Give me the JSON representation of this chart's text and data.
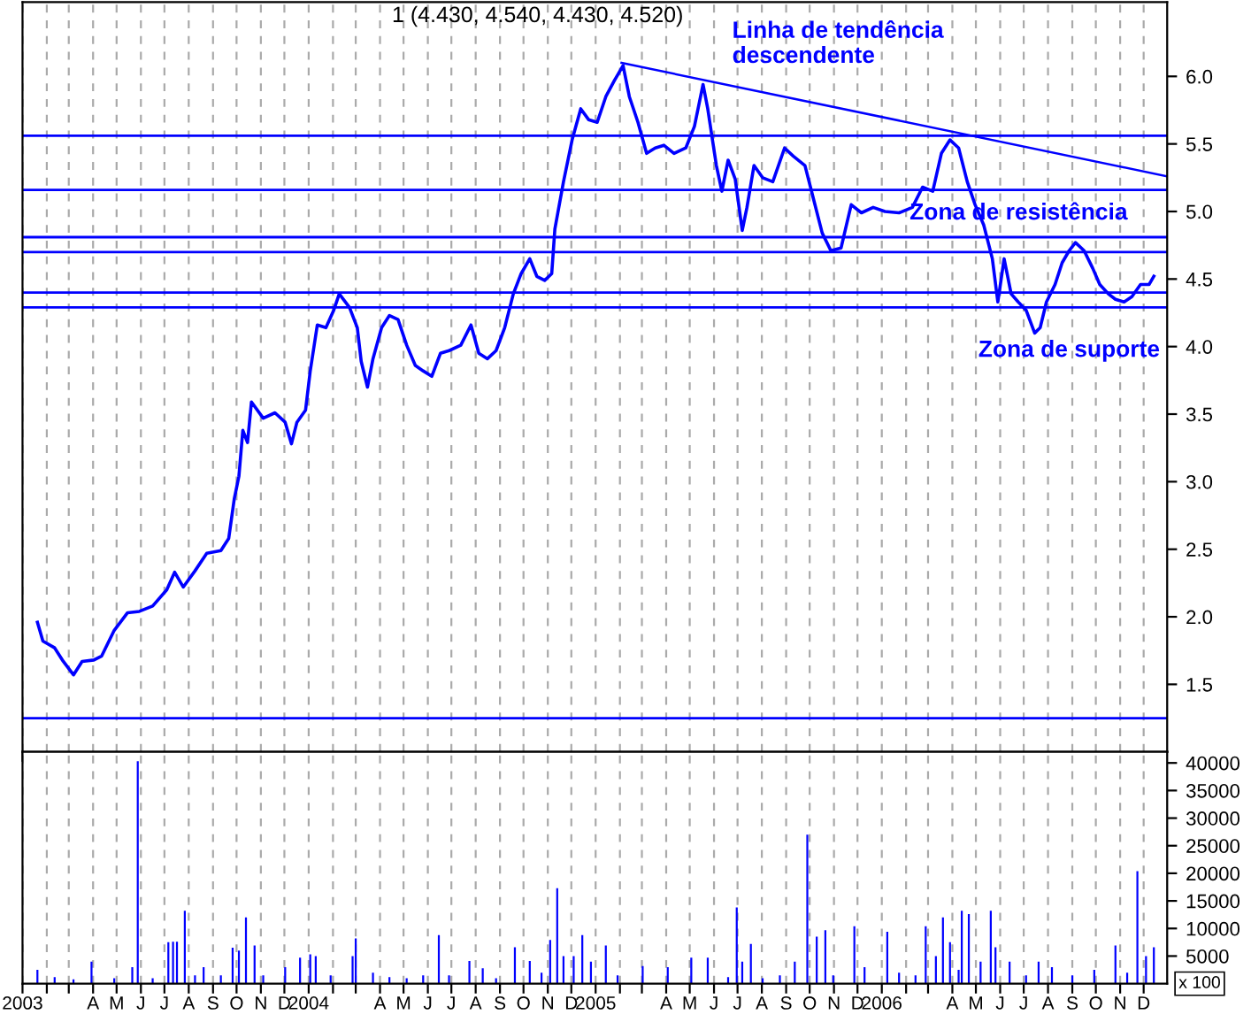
{
  "chart_data": [
    {
      "type": "line",
      "title": "1 (4.430, 4.540, 4.430, 4.520)",
      "series": [
        {
          "type": "line",
          "color": "#0000ff",
          "x": [
            "2003-01-20",
            "2003-01-27",
            "2003-02-11",
            "2003-02-22",
            "2003-03-07",
            "2003-03-18",
            "2003-04-02",
            "2003-04-12",
            "2003-04-28",
            "2003-05-15",
            "2003-05-30",
            "2003-06-16",
            "2003-07-04",
            "2003-07-14",
            "2003-07-25",
            "2003-08-09",
            "2003-08-24",
            "2003-09-11",
            "2003-09-21",
            "2003-09-28",
            "2003-10-04",
            "2003-10-09",
            "2003-10-15",
            "2003-10-20",
            "2003-11-04",
            "2003-11-19",
            "2003-12-02",
            "2003-12-10",
            "2003-12-17",
            "2003-12-28",
            "2004-01-03",
            "2004-01-12",
            "2004-01-23",
            "2004-02-02",
            "2004-02-09",
            "2004-02-22",
            "2004-03-03",
            "2004-03-08",
            "2004-03-16",
            "2004-03-23",
            "2004-04-03",
            "2004-04-13",
            "2004-04-24",
            "2004-05-05",
            "2004-05-16",
            "2004-05-26",
            "2004-06-06",
            "2004-06-17",
            "2004-06-28",
            "2004-07-13",
            "2004-07-26",
            "2004-08-05",
            "2004-08-16",
            "2004-08-27",
            "2004-09-07",
            "2004-09-18",
            "2004-09-28",
            "2004-10-09",
            "2004-10-18",
            "2004-10-28",
            "2004-11-06",
            "2004-11-10",
            "2004-11-21",
            "2004-12-02",
            "2004-12-13",
            "2004-12-23",
            "2005-01-03",
            "2005-01-14",
            "2005-01-25",
            "2005-02-05",
            "2005-02-13",
            "2005-02-24",
            "2005-03-07",
            "2005-03-18",
            "2005-03-29",
            "2005-04-11",
            "2005-04-26",
            "2005-05-07",
            "2005-05-18",
            "2005-05-24",
            "2005-06-04",
            "2005-06-11",
            "2005-06-19",
            "2005-06-28",
            "2005-07-07",
            "2005-07-13",
            "2005-07-22",
            "2005-08-02",
            "2005-08-15",
            "2005-08-30",
            "2005-09-10",
            "2005-09-25",
            "2005-10-06",
            "2005-10-17",
            "2005-10-28",
            "2005-11-10",
            "2005-11-23",
            "2005-12-06",
            "2005-12-21",
            "2006-01-05",
            "2006-01-23",
            "2006-02-09",
            "2006-02-22",
            "2006-03-07",
            "2006-03-18",
            "2006-03-29",
            "2006-04-09",
            "2006-04-20",
            "2006-04-30",
            "2006-05-11",
            "2006-05-22",
            "2006-05-29",
            "2006-06-06",
            "2006-06-15",
            "2006-06-24",
            "2006-07-04",
            "2006-07-15",
            "2006-07-22",
            "2006-07-30",
            "2006-08-10",
            "2006-08-19",
            "2006-08-28",
            "2006-09-05",
            "2006-09-16",
            "2006-09-27",
            "2006-10-06",
            "2006-10-17",
            "2006-10-26",
            "2006-11-06",
            "2006-11-16",
            "2006-11-27",
            "2006-12-08",
            "2006-12-14"
          ],
          "values": [
            1.96,
            1.82,
            1.77,
            1.67,
            1.57,
            1.67,
            1.68,
            1.71,
            1.9,
            2.03,
            2.04,
            2.08,
            2.2,
            2.33,
            2.22,
            2.34,
            2.47,
            2.49,
            2.58,
            2.87,
            3.04,
            3.38,
            3.29,
            3.59,
            3.47,
            3.51,
            3.44,
            3.28,
            3.44,
            3.53,
            3.82,
            4.16,
            4.14,
            4.27,
            4.39,
            4.29,
            4.14,
            3.89,
            3.7,
            3.91,
            4.14,
            4.23,
            4.2,
            4.01,
            3.86,
            3.82,
            3.78,
            3.95,
            3.97,
            4.01,
            4.16,
            3.95,
            3.91,
            3.97,
            4.14,
            4.39,
            4.54,
            4.65,
            4.52,
            4.49,
            4.54,
            4.87,
            5.22,
            5.53,
            5.76,
            5.68,
            5.66,
            5.85,
            5.97,
            6.08,
            5.85,
            5.66,
            5.43,
            5.47,
            5.49,
            5.43,
            5.47,
            5.63,
            5.94,
            5.76,
            5.34,
            5.15,
            5.38,
            5.24,
            4.86,
            5.03,
            5.34,
            5.25,
            5.22,
            5.47,
            5.41,
            5.34,
            5.09,
            4.84,
            4.71,
            4.73,
            5.05,
            4.99,
            5.03,
            5.0,
            4.99,
            5.03,
            5.18,
            5.15,
            5.43,
            5.53,
            5.47,
            5.22,
            5.05,
            4.9,
            4.65,
            4.33,
            4.65,
            4.39,
            4.33,
            4.27,
            4.1,
            4.14,
            4.33,
            4.46,
            4.62,
            4.71,
            4.77,
            4.71,
            4.58,
            4.46,
            4.39,
            4.35,
            4.33,
            4.37,
            4.46,
            4.46,
            4.52
          ]
        },
        {
          "type": "line",
          "color": "#0000ff",
          "x": [
            "2005-02-03",
            "2006-12-31"
          ],
          "values": [
            6.1,
            5.26
          ]
        }
      ],
      "ref_lines": [
        {
          "axis": "y",
          "value": 5.56,
          "color": "#0000ff"
        },
        {
          "axis": "y",
          "value": 5.16,
          "color": "#0000ff"
        },
        {
          "axis": "y",
          "value": 4.81,
          "color": "#0000ff"
        },
        {
          "axis": "y",
          "value": 4.7,
          "color": "#0000ff"
        },
        {
          "axis": "y",
          "value": 4.4,
          "color": "#0000ff"
        },
        {
          "axis": "y",
          "value": 4.29,
          "color": "#0000ff"
        },
        {
          "axis": "y",
          "value": 1.25,
          "color": "#0000ff"
        }
      ],
      "annotations": [
        "Linha de tendência\ndescendente",
        "Zona de resistência",
        "Zona de suporte"
      ],
      "xlim": [
        "2003-01-01",
        "2006-12-31"
      ],
      "xticks": [
        "2003-01-01",
        "2003-02-01",
        "2003-03-01",
        "2003-04-01",
        "2003-05-01",
        "2003-06-01",
        "2003-07-01",
        "2003-08-01",
        "2003-09-01",
        "2003-10-01",
        "2003-11-01",
        "2003-12-01",
        "2004-01-01",
        "2004-02-01",
        "2004-03-01",
        "2004-04-01",
        "2004-05-01",
        "2004-06-01",
        "2004-07-01",
        "2004-08-01",
        "2004-09-01",
        "2004-10-01",
        "2004-11-01",
        "2004-12-01",
        "2005-01-01",
        "2005-02-01",
        "2005-03-01",
        "2005-04-01",
        "2005-05-01",
        "2005-06-01",
        "2005-07-01",
        "2005-08-01",
        "2005-09-01",
        "2005-10-01",
        "2005-11-01",
        "2005-12-01",
        "2006-01-01",
        "2006-02-01",
        "2006-03-01",
        "2006-04-01",
        "2006-05-01",
        "2006-06-01",
        "2006-07-01",
        "2006-08-01",
        "2006-09-01",
        "2006-10-01",
        "2006-11-01",
        "2006-12-01"
      ],
      "ylim": [
        1.0,
        6.55
      ],
      "yticks": [
        1.5,
        {
          "value": 2,
          "label": "2.0"
        },
        2.5,
        {
          "value": 3,
          "label": "3.0"
        },
        3.5,
        {
          "value": 4,
          "label": "4.0"
        },
        4.5,
        {
          "value": 5,
          "label": "5.0"
        },
        5.5,
        {
          "value": 6,
          "label": "6.0"
        }
      ],
      "grid": "x",
      "tick_labels": "y"
    },
    {
      "type": "bar",
      "color": "#0000ff",
      "x": [
        "2003-01-20",
        "2003-02-11",
        "2003-03-07",
        "2003-03-30",
        "2003-04-28",
        "2003-05-21",
        "2003-05-28",
        "2003-06-16",
        "2003-07-06",
        "2003-07-12",
        "2003-07-17",
        "2003-07-27",
        "2003-08-09",
        "2003-08-20",
        "2003-09-11",
        "2003-09-26",
        "2003-10-04",
        "2003-10-13",
        "2003-10-24",
        "2003-11-04",
        "2003-12-02",
        "2003-12-21",
        "2004-01-03",
        "2004-01-10",
        "2004-01-29",
        "2004-02-26",
        "2004-03-01",
        "2004-03-23",
        "2004-04-13",
        "2004-05-05",
        "2004-05-26",
        "2004-06-15",
        "2004-06-28",
        "2004-07-24",
        "2004-08-10",
        "2004-08-27",
        "2004-09-20",
        "2004-10-09",
        "2004-10-24",
        "2004-11-04",
        "2004-11-13",
        "2004-11-21",
        "2004-12-04",
        "2004-12-15",
        "2004-12-26",
        "2005-01-14",
        "2005-01-29",
        "2005-03-02",
        "2005-04-03",
        "2005-05-03",
        "2005-05-24",
        "2005-06-19",
        "2005-06-30",
        "2005-07-07",
        "2005-07-18",
        "2005-08-02",
        "2005-08-24",
        "2005-09-12",
        "2005-09-28",
        "2005-10-10",
        "2005-10-21",
        "2005-10-31",
        "2005-11-27",
        "2005-12-10",
        "2006-01-08",
        "2006-01-23",
        "2006-02-13",
        "2006-02-26",
        "2006-03-11",
        "2006-03-20",
        "2006-03-29",
        "2006-04-09",
        "2006-04-13",
        "2006-04-22",
        "2006-05-07",
        "2006-05-20",
        "2006-05-26",
        "2006-06-13",
        "2006-07-04",
        "2006-07-20",
        "2006-08-06",
        "2006-09-01",
        "2006-09-29",
        "2006-10-26",
        "2006-11-10",
        "2006-11-23",
        "2006-12-04",
        "2006-12-14"
      ],
      "values": [
        2500,
        1200,
        800,
        4000,
        1000,
        3000,
        40300,
        1000,
        7500,
        7600,
        7600,
        13200,
        1500,
        3000,
        1500,
        6500,
        6000,
        12000,
        6900,
        1500,
        3000,
        4700,
        5300,
        5000,
        1500,
        5000,
        8200,
        2000,
        1200,
        1000,
        1500,
        8800,
        1500,
        4100,
        2800,
        1000,
        6600,
        4100,
        2000,
        7900,
        17300,
        5000,
        5000,
        8800,
        4000,
        6900,
        1500,
        3200,
        3000,
        4700,
        4700,
        1200,
        13800,
        4000,
        7200,
        1000,
        1500,
        4000,
        27000,
        8500,
        9700,
        1500,
        10400,
        3000,
        9400,
        2000,
        1500,
        10400,
        5000,
        12000,
        7500,
        2500,
        13200,
        12600,
        4000,
        13200,
        6600,
        4000,
        1500,
        4000,
        3000,
        1500,
        2500,
        6900,
        2000,
        20400,
        5000,
        6600
      ],
      "annotations": [
        "x 100"
      ],
      "xlim": [
        "2003-01-01",
        "2006-12-31"
      ],
      "xticks": [
        {
          "value": "2003-01-01",
          "label": "2003"
        },
        {
          "value": "2003-02-01",
          "label": null
        },
        {
          "value": "2003-03-01",
          "label": null
        },
        {
          "value": "2003-04-01",
          "label": "A"
        },
        {
          "value": "2003-05-01",
          "label": "M"
        },
        {
          "value": "2003-06-01",
          "label": "J"
        },
        {
          "value": "2003-07-01",
          "label": "J"
        },
        {
          "value": "2003-08-01",
          "label": "A"
        },
        {
          "value": "2003-09-01",
          "label": "S"
        },
        {
          "value": "2003-10-01",
          "label": "O"
        },
        {
          "value": "2003-11-01",
          "label": "N"
        },
        {
          "value": "2003-12-01",
          "label": "D"
        },
        {
          "value": "2004-01-01",
          "label": "2004"
        },
        {
          "value": "2004-02-01",
          "label": null
        },
        {
          "value": "2004-03-01",
          "label": null
        },
        {
          "value": "2004-04-01",
          "label": "A"
        },
        {
          "value": "2004-05-01",
          "label": "M"
        },
        {
          "value": "2004-06-01",
          "label": "J"
        },
        {
          "value": "2004-07-01",
          "label": "J"
        },
        {
          "value": "2004-08-01",
          "label": "A"
        },
        {
          "value": "2004-09-01",
          "label": "S"
        },
        {
          "value": "2004-10-01",
          "label": "O"
        },
        {
          "value": "2004-11-01",
          "label": "N"
        },
        {
          "value": "2004-12-01",
          "label": "D"
        },
        {
          "value": "2005-01-01",
          "label": "2005"
        },
        {
          "value": "2005-02-01",
          "label": null
        },
        {
          "value": "2005-03-01",
          "label": null
        },
        {
          "value": "2005-04-01",
          "label": "A"
        },
        {
          "value": "2005-05-01",
          "label": "M"
        },
        {
          "value": "2005-06-01",
          "label": "J"
        },
        {
          "value": "2005-07-01",
          "label": "J"
        },
        {
          "value": "2005-08-01",
          "label": "A"
        },
        {
          "value": "2005-09-01",
          "label": "S"
        },
        {
          "value": "2005-10-01",
          "label": "O"
        },
        {
          "value": "2005-11-01",
          "label": "N"
        },
        {
          "value": "2005-12-01",
          "label": "D"
        },
        {
          "value": "2006-01-01",
          "label": "2006"
        },
        {
          "value": "2006-02-01",
          "label": null
        },
        {
          "value": "2006-03-01",
          "label": null
        },
        {
          "value": "2006-04-01",
          "label": "A"
        },
        {
          "value": "2006-05-01",
          "label": "M"
        },
        {
          "value": "2006-06-01",
          "label": "J"
        },
        {
          "value": "2006-07-01",
          "label": "J"
        },
        {
          "value": "2006-08-01",
          "label": "A"
        },
        {
          "value": "2006-09-01",
          "label": "S"
        },
        {
          "value": "2006-10-01",
          "label": "O"
        },
        {
          "value": "2006-11-01",
          "label": "N"
        },
        {
          "value": "2006-12-01",
          "label": "D"
        }
      ],
      "ylim": [
        0,
        42000
      ],
      "yticks": [
        5000,
        10000,
        15000,
        20000,
        25000,
        30000,
        35000,
        40000
      ],
      "grid": "x"
    }
  ]
}
